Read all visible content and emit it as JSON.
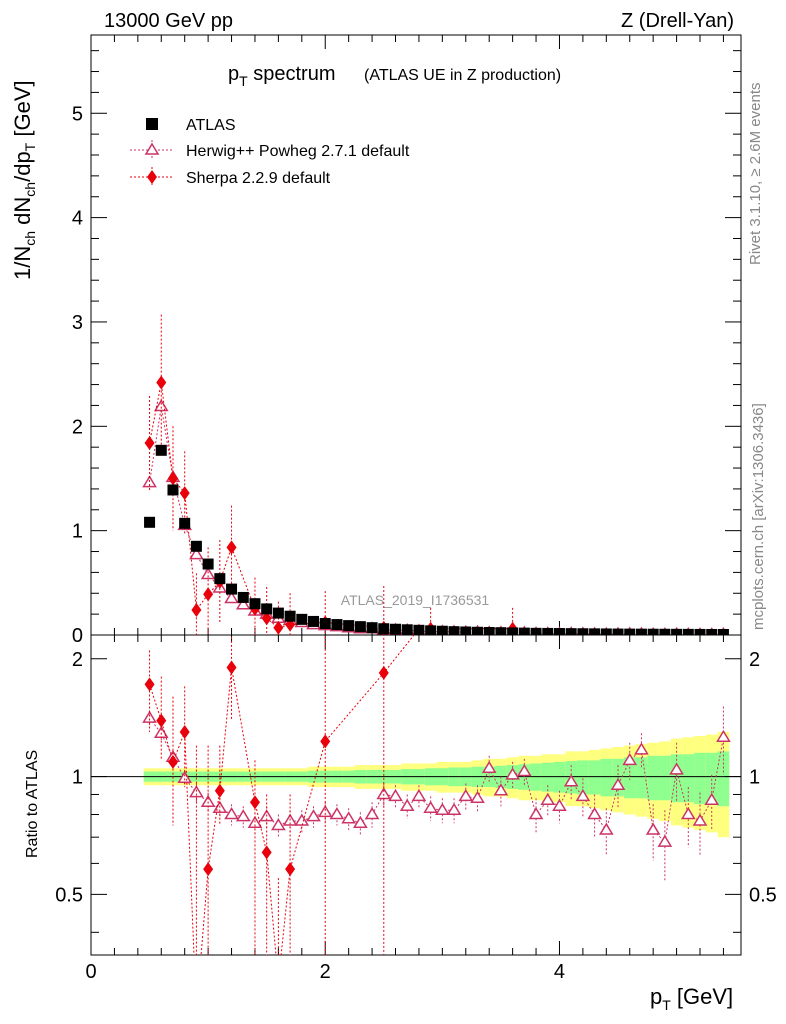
{
  "header": {
    "left": "13000 GeV pp",
    "right": "Z (Drell-Yan)"
  },
  "chart_data": {
    "type": "scatter",
    "title_main": "p",
    "title_sub": "T",
    "title_rest": " spectrum",
    "title_extra": "(ATLAS UE in Z production)",
    "watermark": "ATLAS_2019_I1736531",
    "side_right_top": "Rivet 3.1.10, ≥ 2.6M events",
    "side_right_bottom": "mcplots.cern.ch [arXiv:1306.3436]",
    "xlabel": {
      "main": "p",
      "sub": "T",
      "rest": " [GeV]"
    },
    "ylabel_top": {
      "text": "1/N_ch dN_ch/dp_T [GeV]"
    },
    "ylabel_bottom": "Ratio to ATLAS",
    "xlim": [
      0,
      5.55
    ],
    "ylim_top": [
      0,
      5.75
    ],
    "ylim_ratio": [
      0.35,
      2.3
    ],
    "ratio_log": true,
    "x_ticks": [
      0,
      2,
      4
    ],
    "x_tick_labels": [
      "0",
      "2",
      "4"
    ],
    "y_ticks_top": [
      0,
      1,
      2,
      3,
      4,
      5
    ],
    "y_tick_labels_top": [
      "0",
      "1",
      "2",
      "3",
      "4",
      "5"
    ],
    "y_ticks_ratio": [
      0.5,
      1,
      2
    ],
    "y_tick_labels_ratio": [
      "0.5",
      "1",
      "2"
    ],
    "legend_position": "top-left",
    "series": [
      {
        "name": "ATLAS",
        "marker": "square",
        "color": "#000000",
        "x": [
          0.5,
          0.6,
          0.7,
          0.8,
          0.9,
          1.0,
          1.1,
          1.2,
          1.3,
          1.4,
          1.5,
          1.6,
          1.7,
          1.8,
          1.9,
          2.0,
          2.1,
          2.2,
          2.3,
          2.4,
          2.5,
          2.6,
          2.7,
          2.8,
          2.9,
          3.0,
          3.1,
          3.2,
          3.3,
          3.4,
          3.5,
          3.6,
          3.7,
          3.8,
          3.9,
          4.0,
          4.1,
          4.2,
          4.3,
          4.4,
          4.5,
          4.6,
          4.7,
          4.8,
          4.9,
          5.0,
          5.1,
          5.2,
          5.3,
          5.4
        ],
        "y": [
          1.08,
          1.77,
          1.39,
          1.07,
          0.85,
          0.68,
          0.54,
          0.44,
          0.36,
          0.3,
          0.25,
          0.21,
          0.18,
          0.15,
          0.13,
          0.11,
          0.1,
          0.09,
          0.08,
          0.07,
          0.06,
          0.055,
          0.05,
          0.045,
          0.04,
          0.036,
          0.032,
          0.029,
          0.026,
          0.024,
          0.022,
          0.02,
          0.018,
          0.016,
          0.015,
          0.014,
          0.013,
          0.012,
          0.011,
          0.01,
          0.009,
          0.0085,
          0.008,
          0.0075,
          0.007,
          0.0065,
          0.006,
          0.0055,
          0.005,
          0.005
        ]
      },
      {
        "name": "Herwig++ Powheg 2.7.1 default",
        "marker": "open-triangle",
        "color": "#cc3366",
        "x": [
          0.5,
          0.6,
          0.7,
          0.8,
          0.9,
          1.0,
          1.1,
          1.2,
          1.3,
          1.4,
          1.5,
          1.6,
          1.7,
          1.8,
          1.9,
          2.0,
          2.1,
          2.2,
          2.3,
          2.4,
          2.5,
          2.6,
          2.7,
          2.8,
          2.9,
          3.0,
          3.1,
          3.2,
          3.3,
          3.4,
          3.5,
          3.6,
          3.7,
          3.8,
          3.9,
          4.0,
          4.1,
          4.2,
          4.3,
          4.4,
          4.5,
          4.6,
          4.7,
          4.8,
          4.9,
          5.0,
          5.1,
          5.2,
          5.3,
          5.4
        ],
        "y": [
          1.46,
          2.19,
          1.51,
          1.05,
          0.77,
          0.58,
          0.45,
          0.35,
          0.29,
          0.23,
          0.2,
          0.16,
          0.14,
          0.12,
          0.1,
          0.09,
          0.08,
          0.07,
          0.06,
          0.06,
          0.05,
          0.047,
          0.044,
          0.039,
          0.033,
          0.03,
          0.029,
          0.026,
          0.027,
          0.022,
          0.021,
          0.02,
          0.019,
          0.013,
          0.013,
          0.012,
          0.013,
          0.011,
          0.009,
          0.0074,
          0.0086,
          0.0094,
          0.0092,
          0.0055,
          0.0048,
          0.0068,
          0.0048,
          0.0042,
          0.0044,
          0.0064
        ],
        "ratio": [
          1.41,
          1.29,
          1.12,
          0.99,
          0.91,
          0.86,
          0.83,
          0.8,
          0.79,
          0.76,
          0.79,
          0.75,
          0.77,
          0.77,
          0.79,
          0.81,
          0.8,
          0.78,
          0.76,
          0.8,
          0.9,
          0.89,
          0.84,
          0.89,
          0.83,
          0.82,
          0.82,
          0.89,
          0.88,
          1.05,
          0.92,
          1.01,
          1.03,
          0.8,
          0.87,
          0.84,
          0.97,
          0.89,
          0.8,
          0.73,
          0.95,
          1.1,
          1.17,
          0.73,
          0.68,
          1.04,
          0.8,
          0.77,
          0.87,
          1.26
        ],
        "ratio_err": [
          0.06,
          0.05,
          0.05,
          0.05,
          0.05,
          0.05,
          0.05,
          0.05,
          0.05,
          0.05,
          0.05,
          0.05,
          0.05,
          0.05,
          0.05,
          0.05,
          0.05,
          0.05,
          0.05,
          0.06,
          0.06,
          0.06,
          0.06,
          0.06,
          0.06,
          0.06,
          0.06,
          0.07,
          0.07,
          0.08,
          0.08,
          0.08,
          0.08,
          0.08,
          0.08,
          0.08,
          0.1,
          0.1,
          0.1,
          0.1,
          0.12,
          0.12,
          0.12,
          0.12,
          0.14,
          0.18,
          0.14,
          0.14,
          0.14,
          0.25
        ]
      },
      {
        "name": "Sherpa 2.2.9 default",
        "marker": "diamond",
        "color": "#e8000a",
        "x": [
          0.5,
          0.6,
          0.7,
          0.8,
          0.9,
          1.0,
          1.1,
          1.2,
          1.4,
          1.5,
          1.6,
          1.7,
          2.0,
          2.5,
          2.9,
          3.6
        ],
        "y": [
          1.84,
          2.42,
          1.5,
          1.36,
          0.24,
          0.39,
          0.51,
          0.84,
          0.25,
          0.16,
          0.07,
          0.1,
          0.12,
          0.07,
          0.06,
          0.06
        ],
        "y_err": [
          0.45,
          0.65,
          0.5,
          0.4,
          0.35,
          0.45,
          0.4,
          0.4,
          0.3,
          0.3,
          0.25,
          0.3,
          0.3,
          0.4,
          0.2,
          0.2
        ],
        "ratio": [
          1.72,
          1.39,
          1.09,
          1.3,
          0.25,
          0.58,
          0.92,
          1.9,
          0.86,
          0.64,
          0.3,
          0.58,
          1.23,
          1.84,
          2.6,
          3.0
        ],
        "ratio_up": [
          2.1,
          1.8,
          1.6,
          1.7,
          1.2,
          1.2,
          1.2,
          2.5,
          1.1,
          0.9,
          0.55,
          0.9,
          2.5,
          3.0,
          3.0,
          3.0
        ],
        "ratio_down": [
          1.3,
          1.1,
          0.75,
          0.95,
          0.3,
          0.3,
          0.75,
          1.4,
          0.3,
          0.3,
          0.3,
          0.3,
          0.3,
          0.3,
          3.0,
          3.0
        ]
      }
    ],
    "bands": {
      "x": [
        0.45,
        0.55,
        0.65,
        0.75,
        0.85,
        0.95,
        1.05,
        1.15,
        1.25,
        1.35,
        1.45,
        1.55,
        1.65,
        1.75,
        1.85,
        1.95,
        2.05,
        2.15,
        2.25,
        2.35,
        2.45,
        2.55,
        2.65,
        2.75,
        2.85,
        2.95,
        3.05,
        3.15,
        3.25,
        3.35,
        3.45,
        3.55,
        3.65,
        3.75,
        3.85,
        3.95,
        4.05,
        4.15,
        4.25,
        4.35,
        4.45,
        4.55,
        4.65,
        4.75,
        4.85,
        4.95,
        5.05,
        5.15,
        5.25,
        5.35,
        5.45
      ],
      "yellow": [
        0.05,
        0.05,
        0.05,
        0.05,
        0.05,
        0.05,
        0.05,
        0.05,
        0.05,
        0.05,
        0.05,
        0.05,
        0.05,
        0.05,
        0.06,
        0.06,
        0.06,
        0.06,
        0.07,
        0.07,
        0.07,
        0.07,
        0.08,
        0.08,
        0.08,
        0.09,
        0.09,
        0.09,
        0.1,
        0.11,
        0.11,
        0.12,
        0.13,
        0.13,
        0.14,
        0.14,
        0.16,
        0.16,
        0.17,
        0.18,
        0.19,
        0.2,
        0.21,
        0.22,
        0.23,
        0.25,
        0.26,
        0.27,
        0.28,
        0.3
      ],
      "green": [
        0.03,
        0.03,
        0.03,
        0.03,
        0.03,
        0.03,
        0.03,
        0.03,
        0.03,
        0.03,
        0.03,
        0.03,
        0.03,
        0.03,
        0.035,
        0.035,
        0.035,
        0.035,
        0.04,
        0.04,
        0.04,
        0.04,
        0.045,
        0.045,
        0.05,
        0.05,
        0.055,
        0.055,
        0.06,
        0.06,
        0.065,
        0.07,
        0.075,
        0.08,
        0.085,
        0.09,
        0.095,
        0.1,
        0.1,
        0.11,
        0.11,
        0.12,
        0.12,
        0.13,
        0.13,
        0.14,
        0.14,
        0.15,
        0.15,
        0.16
      ],
      "yellow_color": "#ffff7f",
      "green_color": "#8fff8f"
    }
  }
}
